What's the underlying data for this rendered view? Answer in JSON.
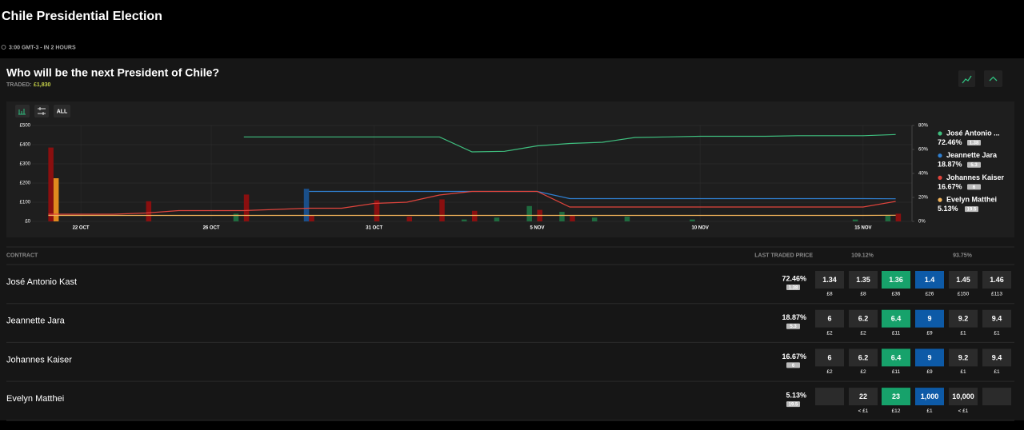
{
  "header": {
    "title": "Chile Presidential Election",
    "time": "3:00 GMT-3 - IN 2 HOURS"
  },
  "market": {
    "question": "Who will be the next President of Chile?",
    "traded_label": "TRADED:",
    "traded_value": "£1,830",
    "range_button": "ALL"
  },
  "chart_data": {
    "type": "line",
    "categories": [
      null,
      "22 OCT",
      null,
      null,
      null,
      "26 OCT",
      null,
      null,
      null,
      null,
      "31 OCT",
      null,
      null,
      null,
      null,
      "5 NOV",
      null,
      null,
      null,
      null,
      "10 NOV",
      null,
      null,
      null,
      null,
      "15 NOV",
      null
    ],
    "ylim": [
      0,
      500
    ],
    "yticks": [
      {
        "value": 0,
        "label": "£0"
      },
      {
        "value": 100,
        "label": "£100"
      },
      {
        "value": 200,
        "label": "£200"
      },
      {
        "value": 300,
        "label": "£300"
      },
      {
        "value": 400,
        "label": "£400"
      },
      {
        "value": 500,
        "label": "£500"
      }
    ],
    "y2lim": [
      0,
      80
    ],
    "y2ticks": [
      {
        "value": 0,
        "label": "0%"
      },
      {
        "value": 20,
        "label": "20%"
      },
      {
        "value": 40,
        "label": "40%"
      },
      {
        "value": 60,
        "label": "60%"
      },
      {
        "value": 80,
        "label": "80%"
      }
    ],
    "grid": true,
    "legend": [
      {
        "label": "José Antonio ...",
        "price": "72.46%",
        "odds": "1.38"
      },
      {
        "label": "Jeannette Jara",
        "price": "18.87%",
        "odds": "5.3"
      },
      {
        "label": "Johannes Kaiser",
        "price": "16.67%",
        "odds": "6"
      },
      {
        "label": "Evelyn Matthei",
        "price": "5.13%",
        "odds": "19.5"
      }
    ],
    "series": [
      {
        "name": "José Antonio Kast",
        "color": "#3fbf7f",
        "bar_color": "#1f6b3f",
        "axis": "y2",
        "values": [
          null,
          null,
          null,
          null,
          null,
          null,
          70.5,
          70.5,
          70.5,
          70.5,
          70.5,
          70.5,
          70.5,
          58,
          58.5,
          63,
          65,
          66,
          70,
          70.5,
          71,
          71,
          71,
          71.5,
          71.5,
          71.5,
          72.46
        ],
        "volumes": [
          0,
          0,
          0,
          0,
          0,
          0,
          40,
          0,
          0,
          0,
          0,
          0,
          0,
          10,
          20,
          80,
          50,
          20,
          25,
          0,
          10,
          0,
          0,
          0,
          0,
          10,
          30
        ]
      },
      {
        "name": "Jeannette Jara",
        "color": "#2f7fd0",
        "bar_color": "#1a4f8a",
        "axis": "y2",
        "values": [
          null,
          null,
          null,
          null,
          null,
          null,
          null,
          null,
          25,
          25,
          25,
          25,
          25,
          25,
          25,
          25,
          19,
          19,
          19,
          19,
          19,
          19,
          19,
          19,
          19,
          19,
          18.87
        ],
        "volumes": [
          0,
          0,
          0,
          0,
          0,
          0,
          0,
          0,
          170,
          0,
          0,
          0,
          0,
          0,
          0,
          0,
          0,
          0,
          0,
          0,
          0,
          0,
          0,
          0,
          0,
          0,
          0
        ]
      },
      {
        "name": "Johannes Kaiser",
        "color": "#e0443c",
        "bar_color": "#8a0f0f",
        "axis": "y2",
        "values": [
          6,
          6,
          6,
          7,
          9,
          9,
          9,
          10,
          11,
          11,
          15,
          16,
          22,
          25,
          25,
          25,
          12,
          12,
          12,
          12,
          12,
          12,
          12,
          12,
          12,
          12,
          16.67
        ],
        "volumes": [
          385,
          0,
          0,
          105,
          0,
          0,
          140,
          0,
          30,
          0,
          110,
          25,
          115,
          55,
          0,
          60,
          30,
          0,
          0,
          0,
          0,
          0,
          0,
          0,
          0,
          0,
          40
        ]
      },
      {
        "name": "Evelyn Matthei",
        "color": "#f2b45a",
        "bar_color": "#e08a1e",
        "axis": "y2",
        "values": [
          5,
          5,
          5,
          5,
          5,
          5,
          5,
          5,
          5,
          5,
          5,
          5,
          5,
          5,
          5,
          5,
          5,
          5,
          5,
          5,
          5,
          5,
          5,
          5,
          5,
          5,
          5.13
        ],
        "volumes": [
          225,
          0,
          0,
          0,
          0,
          0,
          0,
          0,
          0,
          0,
          0,
          0,
          0,
          0,
          0,
          0,
          0,
          0,
          0,
          0,
          0,
          0,
          0,
          0,
          0,
          0,
          0
        ]
      }
    ]
  },
  "table": {
    "headers": {
      "contract": "CONTRACT",
      "last_price": "LAST TRADED PRICE",
      "back_book": "109.12%",
      "lay_book": "93.75%"
    },
    "rows": [
      {
        "name": "José Antonio Kast",
        "price": "72.46%",
        "odds": "1.38",
        "cells": [
          {
            "price": "1.34",
            "amount": "£8"
          },
          {
            "price": "1.35",
            "amount": "£8"
          },
          {
            "price": "1.36",
            "amount": "£36"
          },
          {
            "price": "1.4",
            "amount": "£26"
          },
          {
            "price": "1.45",
            "amount": "£150"
          },
          {
            "price": "1.46",
            "amount": "£113"
          }
        ]
      },
      {
        "name": "Jeannette Jara",
        "price": "18.87%",
        "odds": "5.3",
        "cells": [
          {
            "price": "6",
            "amount": "£2"
          },
          {
            "price": "6.2",
            "amount": "£2"
          },
          {
            "price": "6.4",
            "amount": "£11"
          },
          {
            "price": "9",
            "amount": "£9"
          },
          {
            "price": "9.2",
            "amount": "£1"
          },
          {
            "price": "9.4",
            "amount": "£1"
          }
        ]
      },
      {
        "name": "Johannes Kaiser",
        "price": "16.67%",
        "odds": "6",
        "cells": [
          {
            "price": "6",
            "amount": "£2"
          },
          {
            "price": "6.2",
            "amount": "£2"
          },
          {
            "price": "6.4",
            "amount": "£11"
          },
          {
            "price": "9",
            "amount": "£9"
          },
          {
            "price": "9.2",
            "amount": "£1"
          },
          {
            "price": "9.4",
            "amount": "£1"
          }
        ]
      },
      {
        "name": "Evelyn Matthei",
        "price": "5.13%",
        "odds": "19.5",
        "cells": [
          null,
          {
            "price": "22",
            "amount": "< £1"
          },
          {
            "price": "23",
            "amount": "£12"
          },
          {
            "price": "1,000",
            "amount": "£1"
          },
          {
            "price": "10,000",
            "amount": "< £1"
          },
          null
        ]
      }
    ]
  }
}
